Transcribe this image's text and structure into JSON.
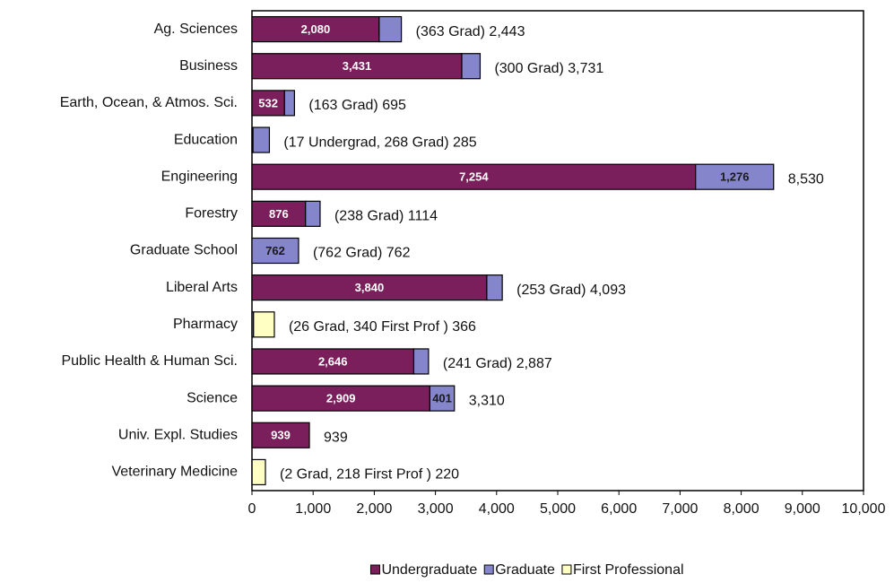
{
  "chart_data": {
    "type": "stacked-bar-horizontal",
    "categories": [
      "Ag. Sciences",
      "Business",
      "Earth, Ocean, & Atmos. Sci.",
      "Education",
      "Engineering",
      "Forestry",
      "Graduate School",
      "Liberal Arts",
      "Pharmacy",
      "Public Health & Human Sci.",
      "Science",
      "Univ. Expl. Studies",
      "Veterinary Medicine"
    ],
    "series": [
      {
        "name": "Undergraduate",
        "color": "#7b1f5c",
        "label_color": "#ffffff",
        "values": [
          2080,
          3431,
          532,
          17,
          7254,
          876,
          0,
          3840,
          0,
          2646,
          2909,
          939,
          0
        ],
        "value_labels": [
          "2,080",
          "3,431",
          "532",
          null,
          "7,254",
          "876",
          null,
          "3,840",
          null,
          "2,646",
          "2,909",
          "939",
          null
        ]
      },
      {
        "name": "Graduate",
        "color": "#8585cc",
        "label_color": "#1a1a1a",
        "values": [
          363,
          300,
          163,
          268,
          1276,
          238,
          762,
          253,
          26,
          241,
          401,
          0,
          2
        ],
        "value_labels": [
          null,
          null,
          null,
          null,
          "1,276",
          null,
          "762",
          null,
          null,
          null,
          "401",
          null,
          null
        ]
      },
      {
        "name": "First Professional",
        "color": "#ffffc4",
        "label_color": "#1a1a1a",
        "values": [
          0,
          0,
          0,
          0,
          0,
          0,
          0,
          0,
          340,
          0,
          0,
          0,
          218
        ],
        "value_labels": [
          null,
          null,
          null,
          null,
          null,
          null,
          null,
          null,
          null,
          null,
          null,
          null,
          null
        ]
      }
    ],
    "annotations": [
      "(363 Grad) 2,443",
      "(300 Grad) 3,731",
      "(163 Grad) 695",
      "(17 Undergrad, 268 Grad) 285",
      "8,530",
      "(238 Grad) 1114",
      "(762 Grad) 762",
      "(253 Grad) 4,093",
      "(26 Grad, 340 First Prof ) 366",
      "(241 Grad) 2,887",
      "3,310",
      "939",
      "(2 Grad, 218 First Prof ) 220"
    ],
    "xlim": [
      0,
      10000
    ],
    "xticks": [
      0,
      {
        "value": 1000,
        "label": "1,000"
      },
      {
        "value": 2000,
        "label": "2,000"
      },
      {
        "value": 3000,
        "label": "3,000"
      },
      {
        "value": 4000,
        "label": "4,000"
      },
      {
        "value": 5000,
        "label": "5,000"
      },
      {
        "value": 6000,
        "label": "6,000"
      },
      {
        "value": 7000,
        "label": "7,000"
      },
      {
        "value": 8000,
        "label": "8,000"
      },
      {
        "value": 9000,
        "label": "9,000"
      },
      {
        "value": 10000,
        "label": "10,000"
      }
    ],
    "legend": "bottom"
  }
}
